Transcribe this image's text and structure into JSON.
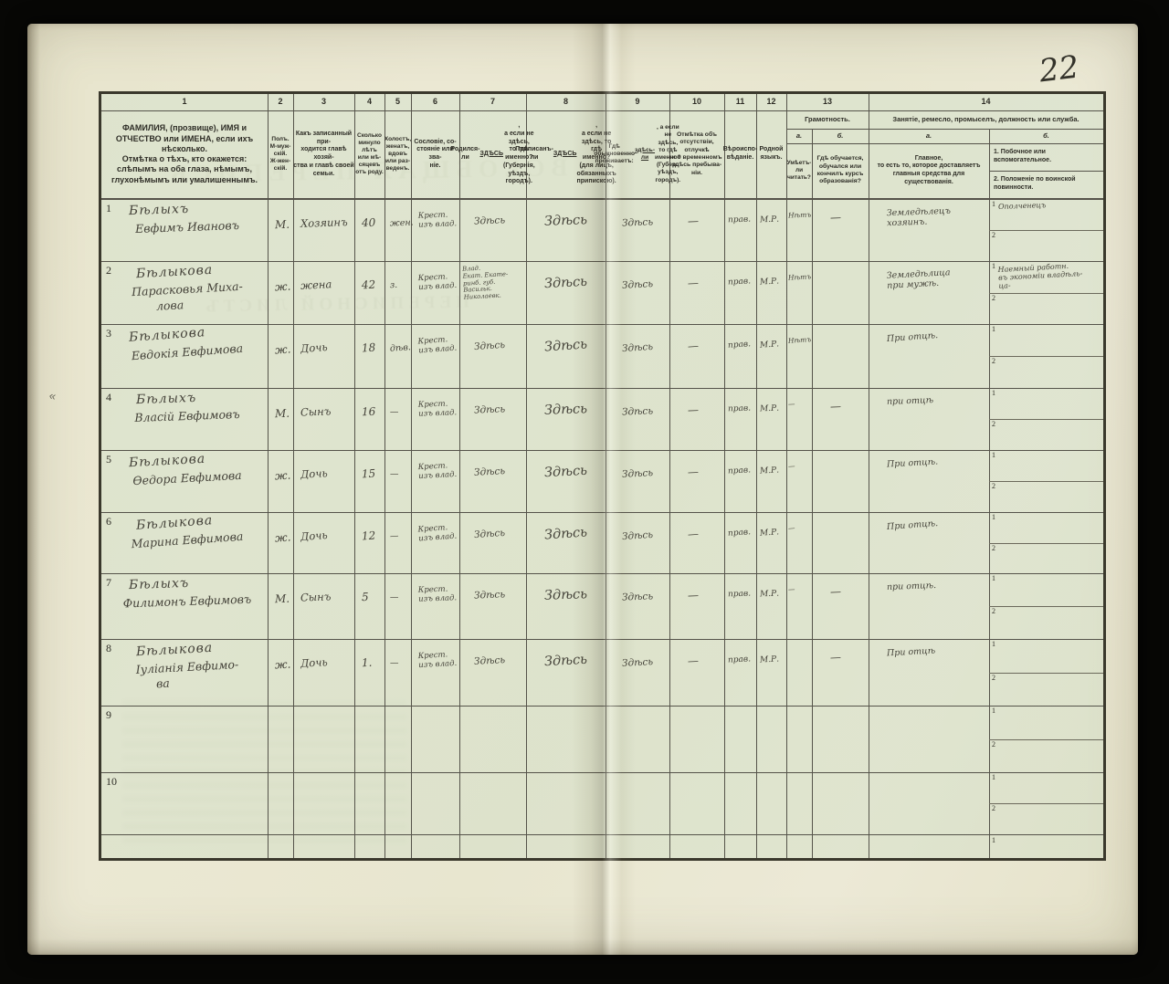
{
  "page_number": "22",
  "bleedthrough": [
    "ВСЕОБЩАЯ ПЕРЕПИСЬ",
    "ПЕРЕПИСНОЙ ЛИСТЪ"
  ],
  "table": {
    "column_numbers": [
      "1",
      "2",
      "3",
      "4",
      "5",
      "6",
      "7",
      "8",
      "9",
      "10",
      "11",
      "12",
      "13",
      "14"
    ],
    "headers": {
      "c1a": "ФАМИЛИЯ, (прозвище), ИМЯ и ОТЧЕСТВО или ИМЕНА, если ихъ нѣсколько.",
      "c1b": "Отмѣтка о тѣхъ, кто окажется: слѣпымъ на оба глаза, нѣмымъ, глухонѣмымъ или умалишеннымъ.",
      "c2": "Полъ.\nМ-муж-\nскій.\nЖ-жен-\nскій.",
      "c3": "Какъ записанный при-\nходится главѣ хозяй-\nства и главѣ своей\nсемьи.",
      "c4": "Сколько\nминуло\nлѣтъ\nили мѣ-\nсяцевъ\nотъ роду.",
      "c5": "Холостъ,\nженатъ,\nвдовъ\nили раз-\nведенъ.",
      "c6": "Сословіе, со-\nстояніе или зва-\nніе.",
      "c7": "Родился-ли ЗДѢСЬ,\nа если не здѣсь,\nто гдѣ именно?\n(Губернія, уѣздъ, городъ).",
      "c8": "Приписанъ-ли ЗДѢСЬ,\nа если не здѣсь, то гдѣ\nименно?\n(для лицъ, обязанныхъ\nприпискою).",
      "c9": "Гдѣ обыкновенно\nпроживаетъ:\nздѣсь-ли, а если\nне здѣсь, то гдѣ\nименно?\n(Губер., уѣздъ, городъ).",
      "c10": "Отмѣтка объ\nотсутствіи, отлучкѣ\nи о временномъ\nздѣсь пребыва-\nніи.",
      "c11": "Вѣроиспо-\nвѣданіе.",
      "c12": "Родной\nязыкъ.",
      "c13_title": "Грамотность.",
      "c13a_label": "а.",
      "c13b_label": "б.",
      "c13a": "Умѣетъ-\nли\nчитать?",
      "c13b": "Гдѣ обучается,\nобучался или\nкончилъ курсъ\nобразованія?",
      "c14_title": "Занятіе, ремесло, промыселъ, должность или служба.",
      "c14a_label": "а.",
      "c14b_label": "б.",
      "c14a": "Главное,\nто есть то, которое доставляетъ\nглавныя средства для существованія.",
      "c14b1": "1.  Побочное или вспомогательное.",
      "c14b2": "2.  Положеніе по воинской повинности."
    },
    "rows": [
      {
        "num": "1",
        "surname": "Бѣлыхъ",
        "name": "Евфимъ Ивановъ",
        "name2": "",
        "sex": "М.",
        "relation": "Хозяинъ",
        "age": "40",
        "marital": "жен.",
        "estate": "Крест.\nизъ влад.",
        "born": "Здѣсь",
        "registered": "Здѣсь",
        "resides": "Здѣсь",
        "absence": "—",
        "religion": "прав.",
        "language": "М.Р.",
        "literate": "Нѣтъ",
        "study": "—",
        "occ_main": "Земледѣлецъ\nхозяинъ.",
        "occ_side1": "Ополченецъ"
      },
      {
        "num": "2",
        "surname": "Бѣлыкова",
        "name": "Парасковья Миха-",
        "name2": "лова",
        "sex": "ж.",
        "relation": "жена",
        "age": "42",
        "marital": "з.",
        "estate": "Крест.\nизъ влад.",
        "born": "Влад.\nЕкат. Екате-\nринб. губ.\nВасильк.\nНиколаевк.",
        "registered": "Здѣсь",
        "resides": "Здѣсь",
        "absence": "—",
        "religion": "прав.",
        "language": "М.Р.",
        "literate": "Нѣтъ",
        "study": "",
        "occ_main": "Земледѣлица\nпри мужѣ.",
        "occ_side1": "Наемный работн.\nвъ экономіи владѣль-\nца-"
      },
      {
        "num": "3",
        "surname": "Бѣлыкова",
        "name": "Евдокія Евфимова",
        "name2": "",
        "sex": "ж.",
        "relation": "Дочь",
        "age": "18",
        "marital": "дѣв.",
        "estate": "Крест.\nизъ влад.",
        "born": "Здѣсь",
        "registered": "Здѣсь",
        "resides": "Здѣсь",
        "absence": "—",
        "religion": "прав.",
        "language": "М.Р.",
        "literate": "Нѣтъ",
        "study": "",
        "occ_main": "При отцѣ.",
        "occ_side1": ""
      },
      {
        "num": "4",
        "surname": "Бѣлыхъ",
        "name": "Власій Евфимовъ",
        "name2": "",
        "sex": "М.",
        "relation": "Сынъ",
        "age": "16",
        "marital": "—",
        "estate": "Крест.\nизъ влад.",
        "born": "Здѣсь",
        "registered": "Здѣсь",
        "resides": "Здѣсь",
        "absence": "—",
        "religion": "прав.",
        "language": "М.Р.",
        "literate": "—",
        "study": "—",
        "occ_main": "при отцѣ",
        "occ_side1": ""
      },
      {
        "num": "5",
        "surname": "Бѣлыкова",
        "name": "Ѳедора Евфимова",
        "name2": "",
        "sex": "ж.",
        "relation": "Дочь",
        "age": "15",
        "marital": "—",
        "estate": "Крест.\nизъ влад.",
        "born": "Здѣсь",
        "registered": "Здѣсь",
        "resides": "Здѣсь",
        "absence": "—",
        "religion": "прав.",
        "language": "М.Р.",
        "literate": "—",
        "study": "",
        "occ_main": "При отцѣ.",
        "occ_side1": ""
      },
      {
        "num": "6",
        "surname": "Бѣлыкова",
        "name": "Марина Евфимова",
        "name2": "",
        "sex": "ж.",
        "relation": "Дочь",
        "age": "12",
        "marital": "—",
        "estate": "Крест.\nизъ влад.",
        "born": "Здѣсь",
        "registered": "Здѣсь",
        "resides": "Здѣсь",
        "absence": "—",
        "religion": "прав.",
        "language": "М.Р.",
        "literate": "—",
        "study": "",
        "occ_main": "При отцѣ.",
        "occ_side1": ""
      },
      {
        "num": "7",
        "surname": "Бѣлыхъ",
        "name": "Филимонъ Евфимовъ",
        "name2": "",
        "sex": "М.",
        "relation": "Сынъ",
        "age": "5",
        "marital": "—",
        "estate": "Крест.\nизъ влад.",
        "born": "Здѣсь",
        "registered": "Здѣсь",
        "resides": "Здѣсь",
        "absence": "—",
        "religion": "прав.",
        "language": "М.Р.",
        "literate": "—",
        "study": "—",
        "occ_main": "при отцѣ.",
        "occ_side1": ""
      },
      {
        "num": "8",
        "surname": "Бѣлыкова",
        "name": "Іуліанія Евфимо-",
        "name2": "ва",
        "sex": "ж.",
        "relation": "Дочь",
        "age": "1.",
        "marital": "—",
        "estate": "Крест.\nизъ влад.",
        "born": "Здѣсь",
        "registered": "Здѣсь",
        "resides": "Здѣсь",
        "absence": "—",
        "religion": "прав.",
        "language": "М.Р.",
        "literate": "",
        "study": "—",
        "occ_main": "При отцѣ",
        "occ_side1": ""
      },
      {
        "num": "9",
        "surname": "",
        "name": "",
        "name2": "",
        "sex": "",
        "relation": "",
        "age": "",
        "marital": "",
        "estate": "",
        "born": "",
        "registered": "",
        "resides": "",
        "absence": "",
        "religion": "",
        "language": "",
        "literate": "",
        "study": "",
        "occ_main": "",
        "occ_side1": ""
      },
      {
        "num": "10",
        "surname": "",
        "name": "",
        "name2": "",
        "sex": "",
        "relation": "",
        "age": "",
        "marital": "",
        "estate": "",
        "born": "",
        "registered": "",
        "resides": "",
        "absence": "",
        "religion": "",
        "language": "",
        "literate": "",
        "study": "",
        "occ_main": "",
        "occ_side1": ""
      }
    ],
    "subcell_numbers": [
      "1",
      "2"
    ]
  }
}
